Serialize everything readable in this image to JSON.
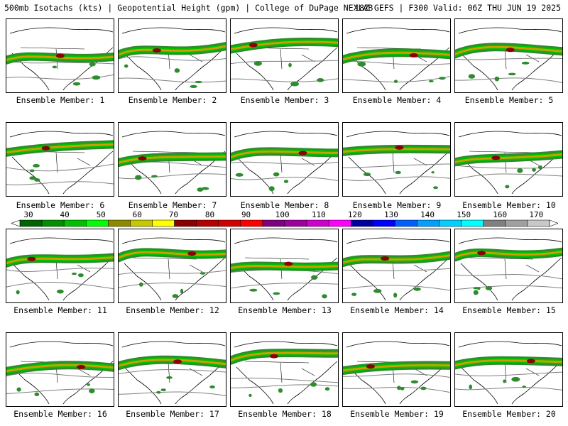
{
  "header": {
    "title_left": "500mb Isotachs (kts) | Geopotential Height (gpm) | College of DuPage NEXLAB",
    "title_right": "18Z GEFS | F300 Valid: 06Z THU JUN 19 2025"
  },
  "members": [
    {
      "caption": "Ensemble Member: 1"
    },
    {
      "caption": "Ensemble Member: 2"
    },
    {
      "caption": "Ensemble Member: 3"
    },
    {
      "caption": "Ensemble Member: 4"
    },
    {
      "caption": "Ensemble Member: 5"
    },
    {
      "caption": "Ensemble Member: 6"
    },
    {
      "caption": "Ensemble Member: 7"
    },
    {
      "caption": "Ensemble Member: 8"
    },
    {
      "caption": "Ensemble Member: 9"
    },
    {
      "caption": "Ensemble Member: 10"
    },
    {
      "caption": "Ensemble Member: 11"
    },
    {
      "caption": "Ensemble Member: 12"
    },
    {
      "caption": "Ensemble Member: 13"
    },
    {
      "caption": "Ensemble Member: 14"
    },
    {
      "caption": "Ensemble Member: 15"
    },
    {
      "caption": "Ensemble Member: 16"
    },
    {
      "caption": "Ensemble Member: 17"
    },
    {
      "caption": "Ensemble Member: 18"
    },
    {
      "caption": "Ensemble Member: 19"
    },
    {
      "caption": "Ensemble Member: 20"
    }
  ],
  "colorbar": {
    "labels": [
      "30",
      "40",
      "50",
      "60",
      "70",
      "80",
      "90",
      "100",
      "110",
      "120",
      "130",
      "140",
      "150",
      "160",
      "170"
    ],
    "colors": [
      "#006400",
      "#009000",
      "#00c000",
      "#00ff00",
      "#8b8b00",
      "#c8c800",
      "#ffff00",
      "#8b0000",
      "#b40000",
      "#d20000",
      "#ff0000",
      "#800080",
      "#a000a0",
      "#d000d0",
      "#ff00ff",
      "#0000a0",
      "#0000ff",
      "#0060ff",
      "#00a0ff",
      "#00d0ff",
      "#00ffff",
      "#808080",
      "#a0a0a0",
      "#c8c8c8"
    ]
  },
  "colors": {
    "jet_weak": "#2e8b2e",
    "jet_mid": "#00c000",
    "jet_strong": "#c8a000",
    "jet_core": "#8b0000",
    "height_contour": "#808080",
    "coastline": "#000000"
  }
}
